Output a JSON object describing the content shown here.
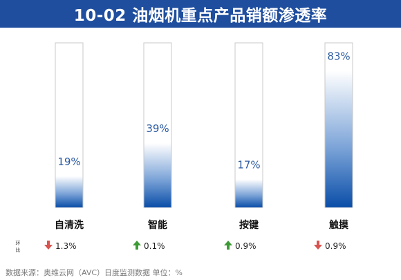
{
  "header": {
    "title": "10-02 油烟机重点产品销额渗透率"
  },
  "chart_data": {
    "type": "bar",
    "title": "10-02 油烟机重点产品销额渗透率",
    "categories": [
      "自清洗",
      "智能",
      "按键",
      "触摸"
    ],
    "values": [
      19,
      39,
      17,
      83
    ],
    "value_labels": [
      "19%",
      "39%",
      "17%",
      "83%"
    ],
    "ylim": [
      0,
      100
    ],
    "unit": "%",
    "change_label": "环比",
    "changes": [
      {
        "text": "1.3%",
        "direction": "down"
      },
      {
        "text": "0.1%",
        "direction": "up"
      },
      {
        "text": "0.9%",
        "direction": "up"
      },
      {
        "text": "0.9%",
        "direction": "down"
      }
    ],
    "colors": {
      "header_bg": "#1f4e9e",
      "bar_dark": "#0a4ea8",
      "bar_light": "#ffffff",
      "track_border": "#c9c9c9",
      "value_text": "#2a5aa0",
      "arrow_down": "#d9534f",
      "arrow_up": "#3d9b35"
    },
    "icons": {
      "down": "down-arrow-icon",
      "up": "up-arrow-icon"
    }
  },
  "footer": {
    "source": "数据来源：奥维云网（AVC）日度监测数据     单位：%"
  }
}
